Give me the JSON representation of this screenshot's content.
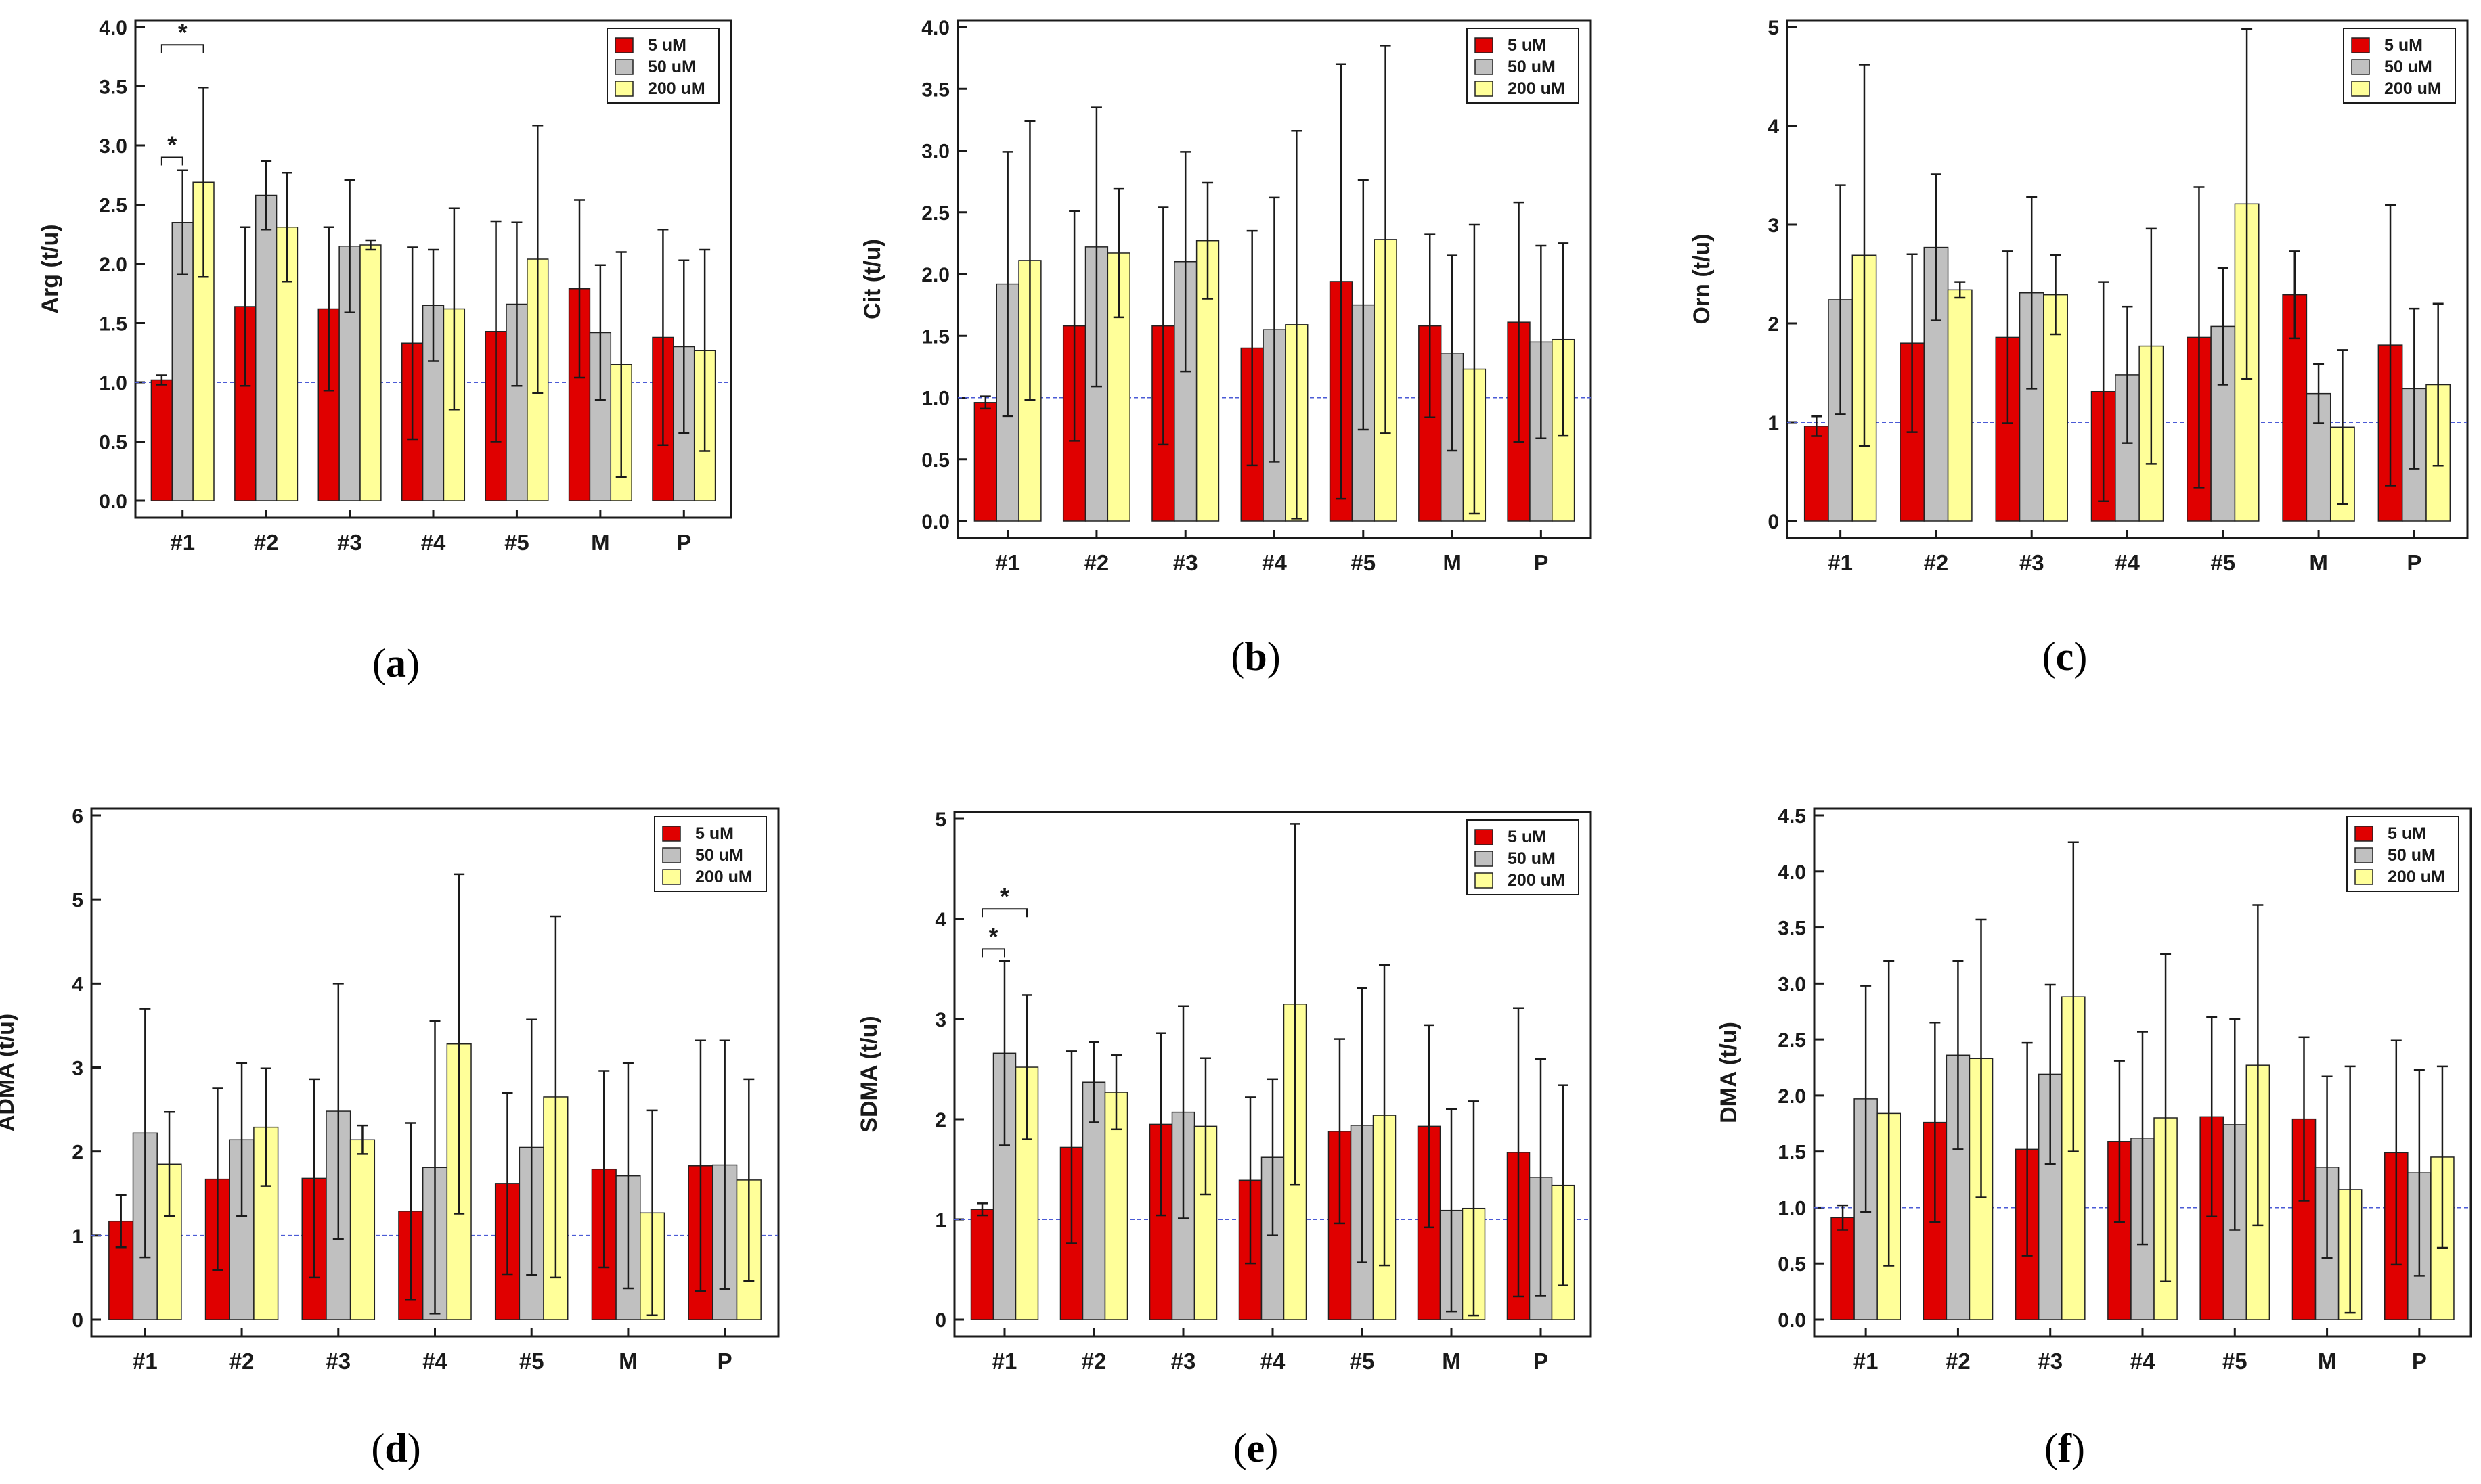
{
  "figure": {
    "colors": {
      "series": [
        "#e00000",
        "#c0c0c0",
        "#ffff99"
      ],
      "bar_edge": "#222222",
      "reference_line": "#4b5bd6",
      "axis": "#1a1a1a"
    }
  },
  "chart_data": [
    {
      "panel": "a",
      "type": "bar",
      "title": "",
      "ylabel": "Arg  (t/u)",
      "xlabel": "",
      "categories": [
        "#1",
        "#2",
        "#3",
        "#4",
        "#5",
        "M",
        "P"
      ],
      "ylim": [
        0,
        4.0
      ],
      "yticks": [
        "0.0",
        "0.5",
        "1.0",
        "1.5",
        "2.0",
        "2.5",
        "3.0",
        "3.5",
        "4.0"
      ],
      "reference_line": 1.0,
      "legend": {
        "position": "top-right",
        "entries": [
          "5 uM",
          "50 uM",
          "200 uM"
        ]
      },
      "series": [
        {
          "name": "5 uM",
          "values": [
            1.02,
            1.64,
            1.62,
            1.33,
            1.43,
            1.79,
            1.38
          ],
          "errors": [
            0.04,
            0.67,
            0.69,
            0.81,
            0.93,
            0.75,
            0.91
          ]
        },
        {
          "name": "50 uM",
          "values": [
            2.35,
            2.58,
            2.15,
            1.65,
            1.66,
            1.42,
            1.3
          ],
          "errors": [
            0.44,
            0.29,
            0.56,
            0.47,
            0.69,
            0.57,
            0.73
          ]
        },
        {
          "name": "200 uM",
          "values": [
            2.69,
            2.31,
            2.16,
            1.62,
            2.04,
            1.15,
            1.27
          ],
          "errors": [
            0.8,
            0.46,
            0.04,
            0.85,
            1.13,
            0.95,
            0.85
          ]
        }
      ],
      "significance": [
        {
          "from": {
            "category": 0,
            "series": 0
          },
          "to": {
            "category": 0,
            "series": 1
          },
          "bracket_y": 2.9,
          "label": "*"
        },
        {
          "from": {
            "category": 0,
            "series": 0
          },
          "to": {
            "category": 0,
            "series": 2
          },
          "bracket_y": 3.85,
          "label": "*"
        }
      ],
      "panel_label": "a"
    },
    {
      "panel": "b",
      "type": "bar",
      "title": "",
      "ylabel": "Cit  (t/u)",
      "xlabel": "",
      "categories": [
        "#1",
        "#2",
        "#3",
        "#4",
        "#5",
        "M",
        "P"
      ],
      "ylim": [
        0,
        4.0
      ],
      "yticks": [
        "0.0",
        "0.5",
        "1.0",
        "1.5",
        "2.0",
        "2.5",
        "3.0",
        "3.5",
        "4.0"
      ],
      "reference_line": 1.0,
      "legend": {
        "position": "top-right",
        "entries": [
          "5 uM",
          "50 uM",
          "200 uM"
        ]
      },
      "series": [
        {
          "name": "5 uM",
          "values": [
            0.96,
            1.58,
            1.58,
            1.4,
            1.94,
            1.58,
            1.61
          ],
          "errors": [
            0.05,
            0.93,
            0.96,
            0.95,
            1.76,
            0.74,
            0.97
          ]
        },
        {
          "name": "50 uM",
          "values": [
            1.92,
            2.22,
            2.1,
            1.55,
            1.75,
            1.36,
            1.45
          ],
          "errors": [
            1.07,
            1.13,
            0.89,
            1.07,
            1.01,
            0.79,
            0.78
          ]
        },
        {
          "name": "200 uM",
          "values": [
            2.11,
            2.17,
            2.27,
            1.59,
            2.28,
            1.23,
            1.47
          ],
          "errors": [
            1.13,
            0.52,
            0.47,
            1.57,
            1.57,
            1.17,
            0.78
          ]
        }
      ],
      "significance": [],
      "panel_label": "b"
    },
    {
      "panel": "c",
      "type": "bar",
      "title": "",
      "ylabel": "Orn  (t/u)",
      "xlabel": "",
      "categories": [
        "#1",
        "#2",
        "#3",
        "#4",
        "#5",
        "M",
        "P"
      ],
      "ylim": [
        0,
        5
      ],
      "yticks": [
        "0",
        "1",
        "2",
        "3",
        "4",
        "5"
      ],
      "reference_line": 1.0,
      "legend": {
        "position": "top-right",
        "entries": [
          "5 uM",
          "50 uM",
          "200 uM"
        ]
      },
      "series": [
        {
          "name": "5 uM",
          "values": [
            0.96,
            1.8,
            1.86,
            1.31,
            1.86,
            2.29,
            1.78
          ],
          "errors": [
            0.1,
            0.9,
            0.87,
            1.11,
            1.52,
            0.44,
            1.42
          ]
        },
        {
          "name": "50 uM",
          "values": [
            2.24,
            2.77,
            2.31,
            1.48,
            1.97,
            1.29,
            1.34
          ],
          "errors": [
            1.16,
            0.74,
            0.97,
            0.69,
            0.59,
            0.3,
            0.81
          ]
        },
        {
          "name": "200 uM",
          "values": [
            2.69,
            2.34,
            2.29,
            1.77,
            3.21,
            0.95,
            1.38
          ],
          "errors": [
            1.93,
            0.08,
            0.4,
            1.19,
            1.77,
            0.78,
            0.82
          ]
        }
      ],
      "significance": [],
      "panel_label": "c"
    },
    {
      "panel": "d",
      "type": "bar",
      "title": "",
      "ylabel": "ADMA  (t/u)",
      "xlabel": "",
      "categories": [
        "#1",
        "#2",
        "#3",
        "#4",
        "#5",
        "M",
        "P"
      ],
      "ylim": [
        0,
        6
      ],
      "yticks": [
        "0",
        "1",
        "2",
        "3",
        "4",
        "5",
        "6"
      ],
      "reference_line": 1.0,
      "legend": {
        "position": "top-right",
        "entries": [
          "5 uM",
          "50 uM",
          "200 uM"
        ]
      },
      "series": [
        {
          "name": "5 uM",
          "values": [
            1.17,
            1.67,
            1.68,
            1.29,
            1.62,
            1.79,
            1.83
          ],
          "errors": [
            0.31,
            1.08,
            1.18,
            1.05,
            1.08,
            1.17,
            1.49
          ]
        },
        {
          "name": "50 uM",
          "values": [
            2.22,
            2.14,
            2.48,
            1.81,
            2.05,
            1.71,
            1.84
          ],
          "errors": [
            1.48,
            0.91,
            1.52,
            1.74,
            1.52,
            1.34,
            1.48
          ]
        },
        {
          "name": "200 uM",
          "values": [
            1.85,
            2.29,
            2.14,
            3.28,
            2.65,
            1.27,
            1.66
          ],
          "errors": [
            0.62,
            0.7,
            0.17,
            2.02,
            2.15,
            1.22,
            1.2
          ]
        }
      ],
      "significance": [],
      "panel_label": "d"
    },
    {
      "panel": "e",
      "type": "bar",
      "title": "",
      "ylabel": "SDMA  (t/u)",
      "xlabel": "",
      "categories": [
        "#1",
        "#2",
        "#3",
        "#4",
        "#5",
        "M",
        "P"
      ],
      "ylim": [
        0,
        5
      ],
      "yticks": [
        "0",
        "1",
        "2",
        "3",
        "4",
        "5"
      ],
      "reference_line": 1.0,
      "legend": {
        "position": "top-right",
        "entries": [
          "5 uM",
          "50 uM",
          "200 uM"
        ]
      },
      "series": [
        {
          "name": "5 uM",
          "values": [
            1.1,
            1.72,
            1.95,
            1.39,
            1.88,
            1.93,
            1.67
          ],
          "errors": [
            0.06,
            0.96,
            0.91,
            0.83,
            0.92,
            1.01,
            1.44
          ]
        },
        {
          "name": "50 uM",
          "values": [
            2.66,
            2.37,
            2.07,
            1.62,
            1.94,
            1.09,
            1.42
          ],
          "errors": [
            0.92,
            0.4,
            1.06,
            0.78,
            1.37,
            1.01,
            1.18
          ]
        },
        {
          "name": "200 uM",
          "values": [
            2.52,
            2.27,
            1.93,
            3.15,
            2.04,
            1.11,
            1.34
          ],
          "errors": [
            0.72,
            0.37,
            0.68,
            1.8,
            1.5,
            1.07,
            1.0
          ]
        }
      ],
      "significance": [
        {
          "from": {
            "category": 0,
            "series": 0
          },
          "to": {
            "category": 0,
            "series": 1
          },
          "bracket_y": 3.7,
          "label": "*"
        },
        {
          "from": {
            "category": 0,
            "series": 0
          },
          "to": {
            "category": 0,
            "series": 2
          },
          "bracket_y": 4.1,
          "label": "*"
        }
      ],
      "panel_label": "e"
    },
    {
      "panel": "f",
      "type": "bar",
      "title": "",
      "ylabel": "DMA  (t/u)",
      "xlabel": "",
      "categories": [
        "#1",
        "#2",
        "#3",
        "#4",
        "#5",
        "M",
        "P"
      ],
      "ylim": [
        0,
        4.5
      ],
      "yticks": [
        "0.0",
        "0.5",
        "1.0",
        "1.5",
        "2.0",
        "2.5",
        "3.0",
        "3.5",
        "4.0",
        "4.5"
      ],
      "reference_line": 1.0,
      "legend": {
        "position": "top-right",
        "entries": [
          "5 uM",
          "50 uM",
          "200 uM"
        ]
      },
      "series": [
        {
          "name": "5 uM",
          "values": [
            0.91,
            1.76,
            1.52,
            1.59,
            1.81,
            1.79,
            1.49
          ],
          "errors": [
            0.11,
            0.89,
            0.95,
            0.72,
            0.89,
            0.73,
            1.0
          ]
        },
        {
          "name": "50 uM",
          "values": [
            1.97,
            2.36,
            2.19,
            1.62,
            1.74,
            1.36,
            1.31
          ],
          "errors": [
            1.01,
            0.84,
            0.8,
            0.95,
            0.94,
            0.81,
            0.92
          ]
        },
        {
          "name": "200 uM",
          "values": [
            1.84,
            2.33,
            2.88,
            1.8,
            2.27,
            1.16,
            1.45
          ],
          "errors": [
            1.36,
            1.24,
            1.38,
            1.46,
            1.43,
            1.1,
            0.81
          ]
        }
      ],
      "significance": [],
      "panel_label": "f"
    }
  ]
}
